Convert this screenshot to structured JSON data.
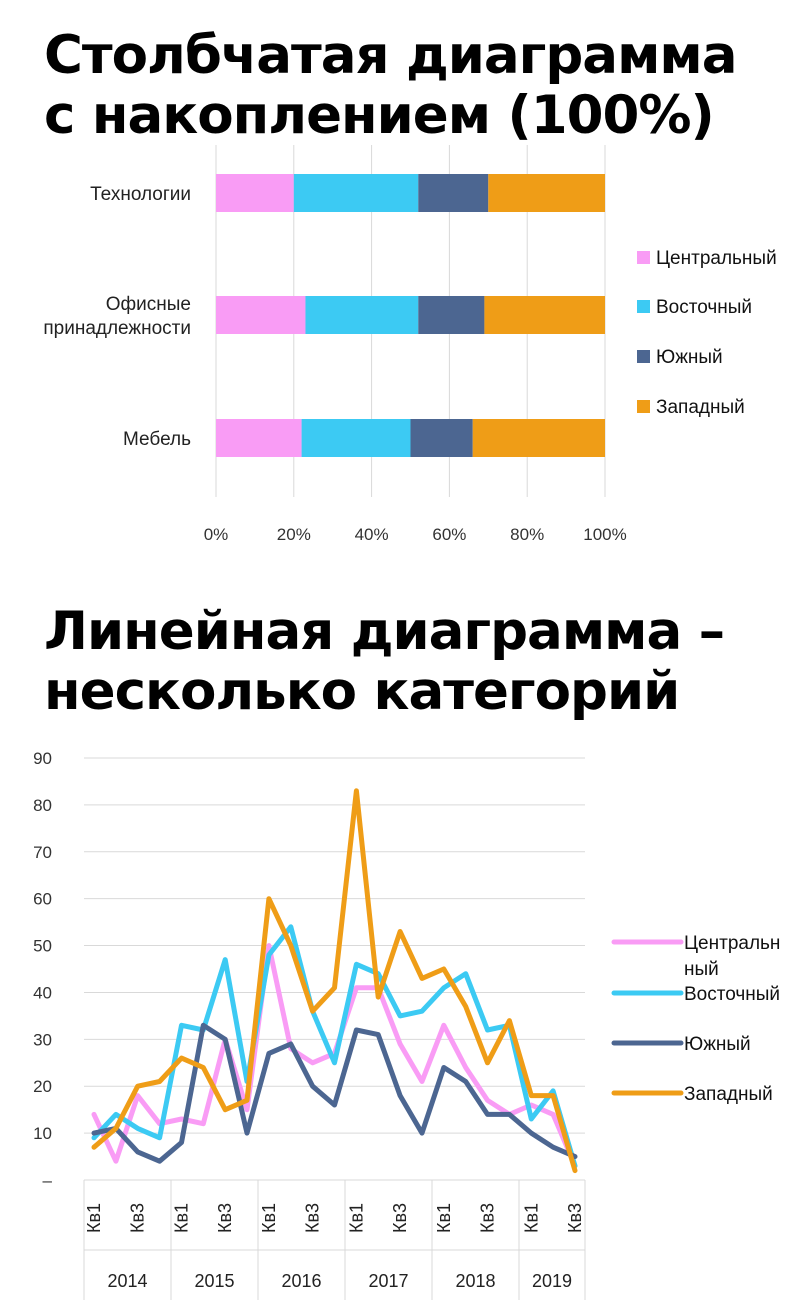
{
  "charts_titles": {
    "bar": [
      "Столбчатая диаграмма",
      "с накоплением (100%)"
    ],
    "line": [
      "Линейная диаграмма –",
      "несколько категорий"
    ]
  },
  "chart_data": [
    {
      "type": "bar",
      "stacked": "100%",
      "orientation": "horizontal",
      "title": "Столбчатая диаграмма с накоплением (100%)",
      "categories": [
        "Технологии",
        "Офисные принадлежности",
        "Мебель"
      ],
      "category_lines": [
        [
          "Технологии"
        ],
        [
          "Офисные",
          "принадлежности"
        ],
        [
          "Мебель"
        ]
      ],
      "series": [
        {
          "name": "Центральный",
          "color": "#f99cf5",
          "values": [
            20,
            23,
            22
          ]
        },
        {
          "name": "Восточный",
          "color": "#3ccaf3",
          "values": [
            32,
            29,
            28
          ]
        },
        {
          "name": "Южный",
          "color": "#4c6691",
          "values": [
            18,
            17,
            16
          ]
        },
        {
          "name": "Западный",
          "color": "#ef9d17",
          "values": [
            30,
            31,
            34
          ]
        }
      ],
      "xlim": [
        0,
        100
      ],
      "xticks": [
        "0%",
        "20%",
        "40%",
        "60%",
        "80%",
        "100%"
      ],
      "grid": true,
      "legend": "right"
    },
    {
      "type": "line",
      "title": "Линейная диаграмма – несколько категорий",
      "x_quarter_labels": [
        "Кв1",
        "Кв3",
        "Кв1",
        "Кв3",
        "Кв1",
        "Кв3",
        "Кв1",
        "Кв3",
        "Кв1",
        "Кв3",
        "Кв1",
        "Кв3"
      ],
      "years": [
        "2014",
        "2015",
        "2016",
        "2017",
        "2018",
        "2019"
      ],
      "ylim": [
        0,
        90
      ],
      "yticks": [
        "–",
        "10",
        "20",
        "30",
        "40",
        "50",
        "60",
        "70",
        "80",
        "90"
      ],
      "grid": true,
      "legend": "right",
      "series": [
        {
          "name": "Центральный",
          "legend_lines": [
            "Центральн",
            "ный"
          ],
          "color": "#f99cf5",
          "values": [
            14,
            4,
            18,
            12,
            13,
            12,
            30,
            15,
            50,
            28,
            25,
            27,
            41,
            41,
            29,
            21,
            33,
            24,
            17,
            14,
            16,
            14,
            3
          ]
        },
        {
          "name": "Восточный",
          "legend_lines": [
            "Восточный"
          ],
          "color": "#3ccaf3",
          "values": [
            9,
            14,
            11,
            9,
            33,
            32,
            47,
            21,
            48,
            54,
            36,
            25,
            46,
            44,
            35,
            36,
            41,
            44,
            32,
            33,
            13,
            19,
            3
          ]
        },
        {
          "name": "Южный",
          "legend_lines": [
            "Южный"
          ],
          "color": "#4c6691",
          "values": [
            10,
            11,
            6,
            4,
            8,
            33,
            30,
            10,
            27,
            29,
            20,
            16,
            32,
            31,
            18,
            10,
            24,
            21,
            14,
            14,
            10,
            7,
            5
          ]
        },
        {
          "name": "Западный",
          "legend_lines": [
            "Западный"
          ],
          "color": "#ef9d17",
          "values": [
            7,
            11,
            20,
            21,
            26,
            24,
            15,
            17,
            60,
            50,
            36,
            41,
            83,
            39,
            53,
            43,
            45,
            37,
            25,
            34,
            18,
            18,
            2
          ]
        }
      ]
    }
  ]
}
